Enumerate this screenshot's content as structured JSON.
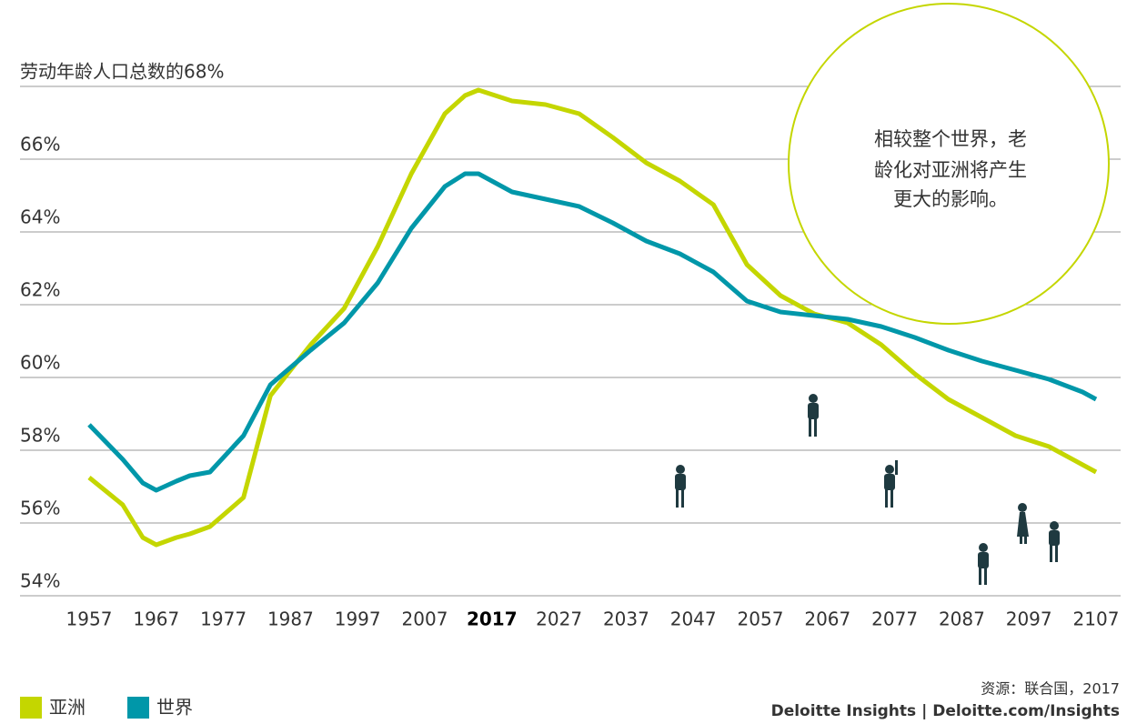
{
  "chart_data": {
    "type": "line",
    "x": [
      1957,
      1962,
      1965,
      1967,
      1970,
      1972,
      1975,
      1980,
      1984,
      1990,
      1995,
      2000,
      2005,
      2010,
      2013,
      2015,
      2020,
      2025,
      2030,
      2035,
      2040,
      2045,
      2050,
      2055,
      2060,
      2065,
      2070,
      2075,
      2080,
      2085,
      2090,
      2095,
      2100,
      2105,
      2107
    ],
    "series": [
      {
        "name": "亚洲",
        "color": "#c4d600",
        "values": [
          57.25,
          56.5,
          55.6,
          55.4,
          55.6,
          55.7,
          55.9,
          56.7,
          59.5,
          60.9,
          61.9,
          63.6,
          65.6,
          67.25,
          67.75,
          67.9,
          67.6,
          67.5,
          67.25,
          66.6,
          65.9,
          65.4,
          64.75,
          63.1,
          62.25,
          61.75,
          61.5,
          60.9,
          60.1,
          59.4,
          58.9,
          58.4,
          58.1,
          57.6,
          57.4
        ]
      },
      {
        "name": "世界",
        "color": "#0097a9",
        "values": [
          58.7,
          57.75,
          57.1,
          56.9,
          57.15,
          57.3,
          57.4,
          58.4,
          59.8,
          60.75,
          61.5,
          62.6,
          64.1,
          65.25,
          65.6,
          65.6,
          65.1,
          64.9,
          64.7,
          64.25,
          63.75,
          63.4,
          62.9,
          62.1,
          61.8,
          61.7,
          61.6,
          61.4,
          61.1,
          60.75,
          60.45,
          60.2,
          59.95,
          59.6,
          59.4
        ]
      }
    ],
    "xlim": [
      1957,
      2107
    ],
    "xticks": [
      1957,
      1967,
      1977,
      1987,
      1997,
      2007,
      2017,
      2027,
      2037,
      2047,
      2057,
      2067,
      2077,
      2087,
      2097,
      2107
    ],
    "emphasized_xtick": 2017,
    "ylim": [
      54,
      68
    ],
    "yticks": [
      {
        "value": 54,
        "label": "54%"
      },
      {
        "value": 56,
        "label": "56%"
      },
      {
        "value": 58,
        "label": "58%"
      },
      {
        "value": 60,
        "label": "60%"
      },
      {
        "value": 62,
        "label": "62%"
      },
      {
        "value": 64,
        "label": "64%"
      },
      {
        "value": 66,
        "label": "66%"
      },
      {
        "value": 68,
        "label": "劳动年龄人口总数的68%"
      }
    ],
    "grid": true,
    "annotation": [
      "相较整个世界，老",
      "龄化对亚洲将产生",
      "更大的影响。"
    ],
    "source": "资源：联合国，2017",
    "credit": "Deloitte Insights | Deloitte.com/Insights"
  }
}
